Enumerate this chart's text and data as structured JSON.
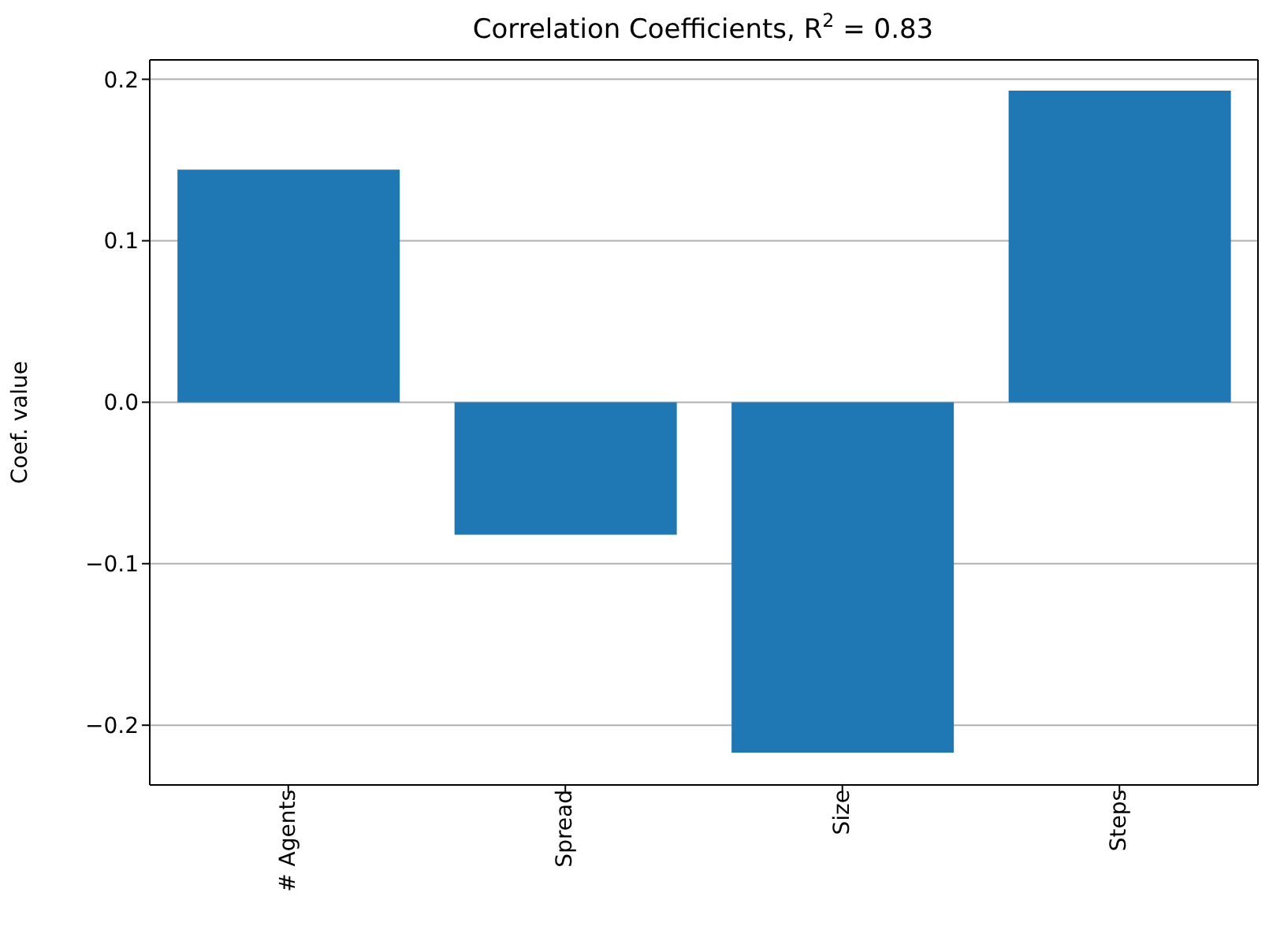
{
  "chart_data": {
    "type": "bar",
    "title": "Correlation Coefficients, R$^{2}$ = 0.83",
    "ylabel": "Coef. value",
    "categories": [
      "# Agents",
      "Spread",
      "Size",
      "Steps"
    ],
    "values": [
      0.144,
      -0.082,
      -0.217,
      0.193
    ],
    "color": "#1f77b4",
    "ylim": [
      -0.237,
      0.212
    ],
    "yticks": [
      {
        "value": -0.2,
        "label": "−0.2"
      },
      {
        "value": -0.1,
        "label": "−0.1"
      },
      {
        "value": 0,
        "label": "0.0"
      },
      {
        "value": 0.1,
        "label": "0.1"
      },
      {
        "value": 0.2,
        "label": "0.2"
      }
    ],
    "grid": "y"
  }
}
